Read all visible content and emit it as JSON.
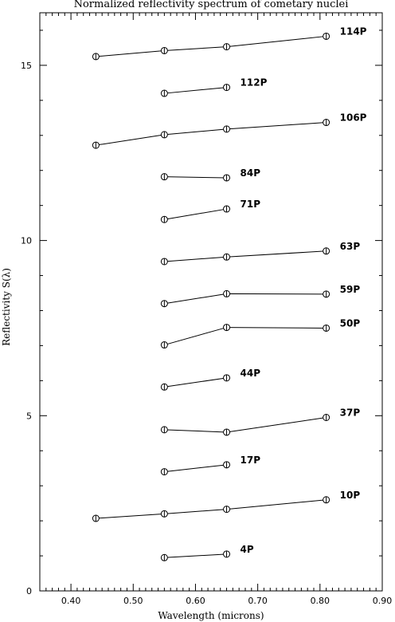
{
  "chart_data": {
    "type": "line",
    "title": "Normalized reflectivity spectrum of cometary nuclei",
    "xlabel": "Wavelength (microns)",
    "ylabel": "Reflectivity S(λ)",
    "xlim": [
      0.35,
      0.9
    ],
    "ylim": [
      0,
      16.5
    ],
    "xticks": [
      0.4,
      0.5,
      0.6,
      0.7,
      0.8,
      0.9
    ],
    "xtick_labels": [
      "0.40",
      "0.50",
      "0.60",
      "0.70",
      "0.80",
      "0.90"
    ],
    "yticks": [
      0,
      5,
      10,
      15
    ],
    "ytick_labels": [
      "0",
      "5",
      "10",
      "15"
    ],
    "marker": "circle",
    "grid": false,
    "series": [
      {
        "name": "114P",
        "points": [
          [
            0.44,
            15.25
          ],
          [
            0.55,
            15.42
          ],
          [
            0.65,
            15.53
          ],
          [
            0.81,
            15.83
          ]
        ]
      },
      {
        "name": "112P",
        "points": [
          [
            0.55,
            14.2
          ],
          [
            0.65,
            14.37
          ]
        ]
      },
      {
        "name": "106P",
        "points": [
          [
            0.44,
            12.72
          ],
          [
            0.55,
            13.02
          ],
          [
            0.65,
            13.18
          ],
          [
            0.81,
            13.37
          ]
        ]
      },
      {
        "name": "84P",
        "points": [
          [
            0.55,
            11.82
          ],
          [
            0.65,
            11.79
          ]
        ]
      },
      {
        "name": "71P",
        "points": [
          [
            0.55,
            10.6
          ],
          [
            0.65,
            10.9
          ]
        ]
      },
      {
        "name": "63P",
        "points": [
          [
            0.55,
            9.4
          ],
          [
            0.65,
            9.53
          ],
          [
            0.81,
            9.7
          ]
        ]
      },
      {
        "name": "59P",
        "points": [
          [
            0.55,
            8.2
          ],
          [
            0.65,
            8.48
          ],
          [
            0.81,
            8.47
          ]
        ]
      },
      {
        "name": "50P",
        "points": [
          [
            0.55,
            7.02
          ],
          [
            0.65,
            7.52
          ],
          [
            0.81,
            7.5
          ]
        ]
      },
      {
        "name": "44P",
        "points": [
          [
            0.55,
            5.82
          ],
          [
            0.65,
            6.08
          ]
        ]
      },
      {
        "name": "37P",
        "points": [
          [
            0.55,
            4.6
          ],
          [
            0.65,
            4.53
          ],
          [
            0.81,
            4.95
          ]
        ]
      },
      {
        "name": "17P",
        "points": [
          [
            0.55,
            3.4
          ],
          [
            0.65,
            3.6
          ]
        ]
      },
      {
        "name": "10P",
        "points": [
          [
            0.44,
            2.07
          ],
          [
            0.55,
            2.2
          ],
          [
            0.65,
            2.33
          ],
          [
            0.81,
            2.6
          ]
        ]
      },
      {
        "name": "4P",
        "points": [
          [
            0.55,
            0.95
          ],
          [
            0.65,
            1.05
          ]
        ]
      }
    ]
  }
}
